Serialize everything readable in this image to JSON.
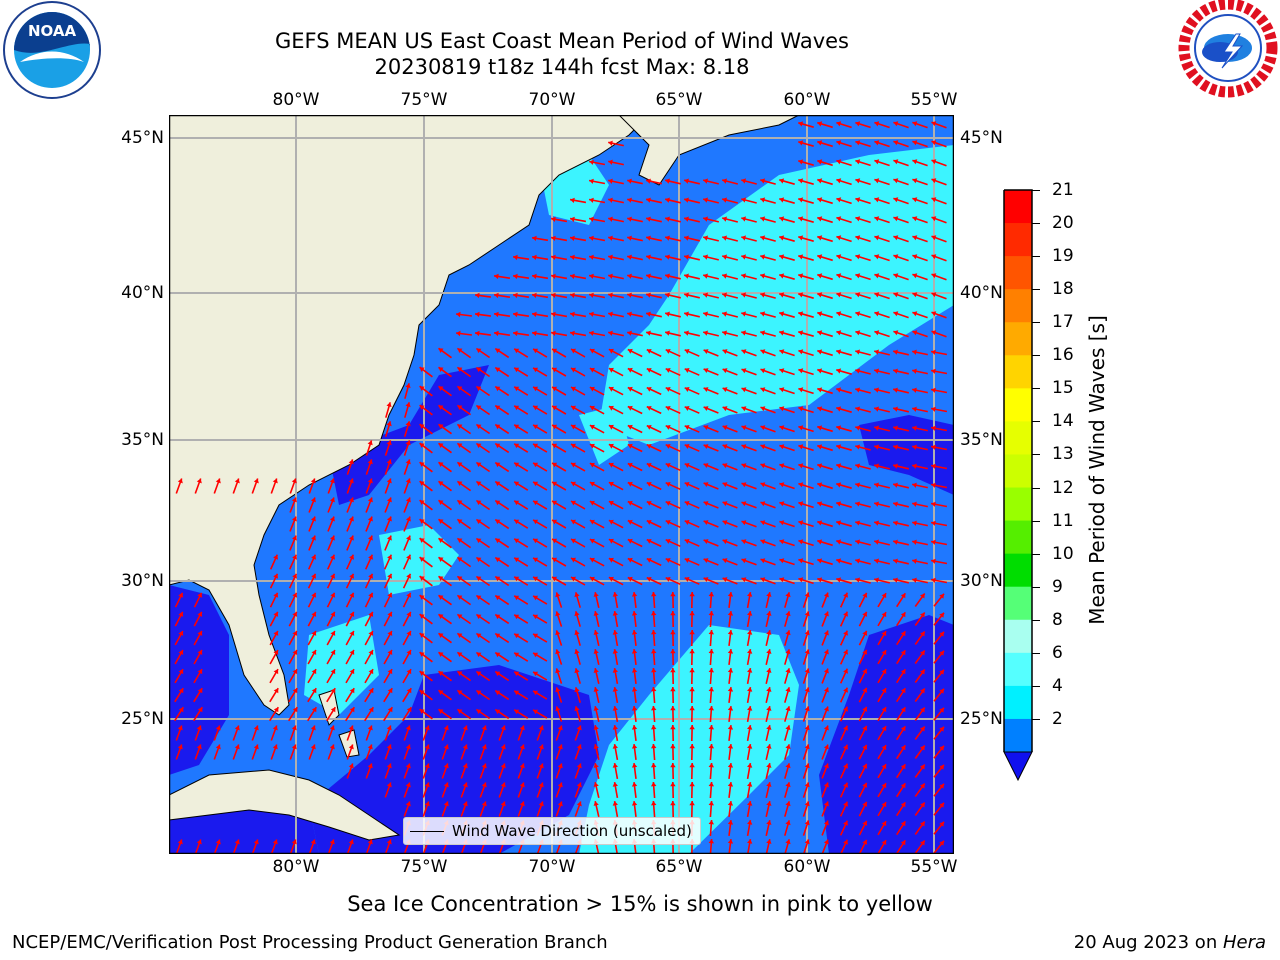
{
  "title": {
    "line1": "GEFS MEAN US East Coast Mean Period of Wind Waves",
    "line2": "20230819 t18z 144h fcst   Max: 8.18"
  },
  "logos": {
    "left": {
      "text": "NOAA",
      "icon": "noaa-logo"
    },
    "right": {
      "icon": "national-weather-service-logo"
    }
  },
  "map": {
    "lon_ticks": [
      "80°W",
      "75°W",
      "70°W",
      "65°W",
      "60°W",
      "55°W"
    ],
    "lat_ticks": [
      "45°N",
      "40°N",
      "35°N",
      "30°N",
      "25°N"
    ],
    "legend_label": "Wind Wave Direction (unscaled)",
    "colors": {
      "land": "#efefdc",
      "ocean_dark": "#1a1aee",
      "ocean_mid": "#1f78ff",
      "ocean_light": "#3cf4ff",
      "arrow": "#ff0000",
      "grid": "#b0b0b0"
    }
  },
  "colorbar": {
    "label": "Mean Period of Wind Waves [s]",
    "ticks": [
      "21",
      "20",
      "19",
      "18",
      "17",
      "16",
      "15",
      "14",
      "13",
      "12",
      "11",
      "10",
      "9",
      "8",
      "6",
      "4",
      "2"
    ],
    "colors": [
      "#ff0000",
      "#ff2a00",
      "#ff5500",
      "#ff8000",
      "#ffaa00",
      "#ffd400",
      "#ffff00",
      "#e6ff00",
      "#ccff00",
      "#99ff00",
      "#55ee00",
      "#00dd00",
      "#55ff77",
      "#a9fff0",
      "#55ffff",
      "#00f0ff",
      "#0080ff"
    ],
    "under_color": "#1010ee"
  },
  "footer": {
    "note": "Sea Ice Concentration > 15% is shown in pink to yellow",
    "credit": "NCEP/EMC/Verification Post Processing Product Generation Branch",
    "date": "20 Aug 2023 on ",
    "machine": "Hera"
  }
}
